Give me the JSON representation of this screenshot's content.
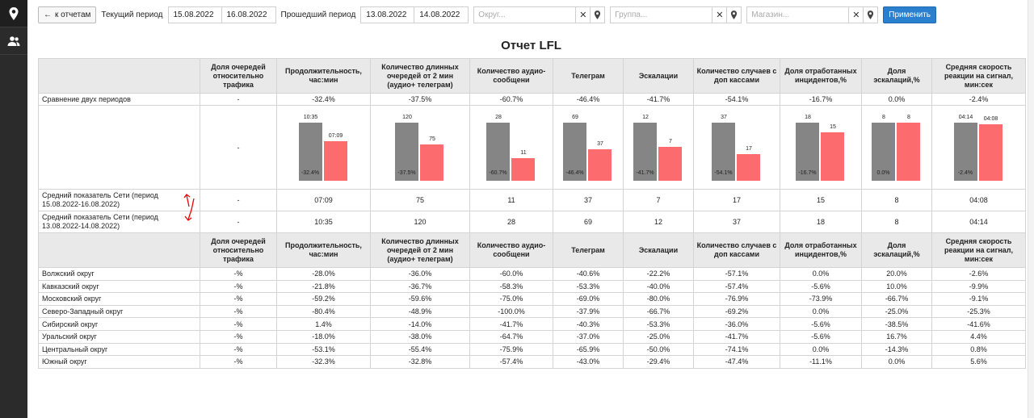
{
  "sidebar": {
    "icons": [
      "map-pin-icon",
      "users-icon"
    ]
  },
  "toolbar": {
    "back_label": "к отчетам",
    "current_period_label": "Текущий период",
    "current_from": "15.08.2022",
    "current_to": "16.08.2022",
    "previous_period_label": "Прошедший период",
    "previous_from": "13.08.2022",
    "previous_to": "14.08.2022",
    "district_placeholder": "Округ...",
    "group_placeholder": "Группа...",
    "store_placeholder": "Магазин...",
    "apply_label": "Применить"
  },
  "report": {
    "title": "Отчет LFL",
    "columns": [
      "Доля очередей относительно трафика",
      "Продолжительность, час:мин",
      "Количество длинных очередей от 2 мин (аудио+ телеграм)",
      "Количество аудио-сообщени",
      "Телеграм",
      "Эскалации",
      "Количество случаев с доп кассами",
      "Доля отработанных инцидентов,%",
      "Доля эскалаций,%",
      "Средняя скорость реакции на сигнал, мин:сек"
    ],
    "comparison": {
      "label": "Сравнение двух периодов",
      "values": [
        "-",
        "-32.4%",
        "-37.5%",
        "-60.7%",
        "-46.4%",
        "-41.7%",
        "-54.1%",
        "-16.7%",
        "0.0%",
        "-2.4%"
      ]
    },
    "charts_first_cell": "-",
    "avg_current": {
      "label": "Средний показатель Сети (период 15.08.2022-16.08.2022)",
      "values": [
        "-",
        "07:09",
        "75",
        "11",
        "37",
        "7",
        "17",
        "15",
        "8",
        "04:08"
      ]
    },
    "avg_previous": {
      "label": "Средний показатель Сети (период 13.08.2022-14.08.2022)",
      "values": [
        "-",
        "10:35",
        "120",
        "28",
        "69",
        "12",
        "37",
        "18",
        "8",
        "04:14"
      ]
    },
    "districts": [
      {
        "name": "Волжский округ",
        "values": [
          "-%",
          "-28.0%",
          "-36.0%",
          "-60.0%",
          "-40.6%",
          "-22.2%",
          "-57.1%",
          "0.0%",
          "20.0%",
          "-2.6%"
        ]
      },
      {
        "name": "Кавказский округ",
        "values": [
          "-%",
          "-21.8%",
          "-36.7%",
          "-58.3%",
          "-53.3%",
          "-40.0%",
          "-57.4%",
          "-5.6%",
          "10.0%",
          "-9.9%"
        ]
      },
      {
        "name": "Московский округ",
        "values": [
          "-%",
          "-59.2%",
          "-59.6%",
          "-75.0%",
          "-69.0%",
          "-80.0%",
          "-76.9%",
          "-73.9%",
          "-66.7%",
          "-9.1%"
        ]
      },
      {
        "name": "Северо-Западный округ",
        "values": [
          "-%",
          "-80.4%",
          "-48.9%",
          "-100.0%",
          "-37.9%",
          "-66.7%",
          "-69.2%",
          "0.0%",
          "-25.0%",
          "-25.3%"
        ]
      },
      {
        "name": "Сибирский округ",
        "values": [
          "-%",
          "1.4%",
          "-14.0%",
          "-41.7%",
          "-40.3%",
          "-53.3%",
          "-36.0%",
          "-5.6%",
          "-38.5%",
          "-41.6%"
        ]
      },
      {
        "name": "Уральский округ",
        "values": [
          "-%",
          "-18.0%",
          "-38.0%",
          "-64.7%",
          "-37.0%",
          "-25.0%",
          "-41.7%",
          "-5.6%",
          "16.7%",
          "4.4%"
        ]
      },
      {
        "name": "Центральный округ",
        "values": [
          "-%",
          "-53.1%",
          "-55.4%",
          "-75.9%",
          "-65.9%",
          "-50.0%",
          "-74.1%",
          "0.0%",
          "-14.3%",
          "0.8%"
        ]
      },
      {
        "name": "Южный округ",
        "values": [
          "-%",
          "-32.3%",
          "-32.8%",
          "-57.4%",
          "-43.0%",
          "-29.4%",
          "-47.4%",
          "-11.1%",
          "0.0%",
          "5.6%"
        ]
      }
    ]
  },
  "chart_data": {
    "type": "bar",
    "colors": {
      "previous": "#858585",
      "current": "#fc6b6e"
    },
    "charts": [
      {
        "prev_label": "10:35",
        "cur_label": "07:09",
        "prev": 635,
        "cur": 429,
        "change": "-32.4%"
      },
      {
        "prev_label": "120",
        "cur_label": "75",
        "prev": 120,
        "cur": 75,
        "change": "-37.5%"
      },
      {
        "prev_label": "28",
        "cur_label": "11",
        "prev": 28,
        "cur": 11,
        "change": "-60.7%"
      },
      {
        "prev_label": "69",
        "cur_label": "37",
        "prev": 69,
        "cur": 37,
        "change": "-46.4%"
      },
      {
        "prev_label": "12",
        "cur_label": "7",
        "prev": 12,
        "cur": 7,
        "change": "-41.7%"
      },
      {
        "prev_label": "37",
        "cur_label": "17",
        "prev": 37,
        "cur": 17,
        "change": "-54.1%"
      },
      {
        "prev_label": "18",
        "cur_label": "15",
        "prev": 18,
        "cur": 15,
        "change": "-16.7%"
      },
      {
        "prev_label": "8",
        "cur_label": "8",
        "prev": 8,
        "cur": 8,
        "change": "0.0%"
      },
      {
        "prev_label": "04:14",
        "cur_label": "04:08",
        "prev": 254,
        "cur": 248,
        "change": "-2.4%"
      }
    ]
  }
}
